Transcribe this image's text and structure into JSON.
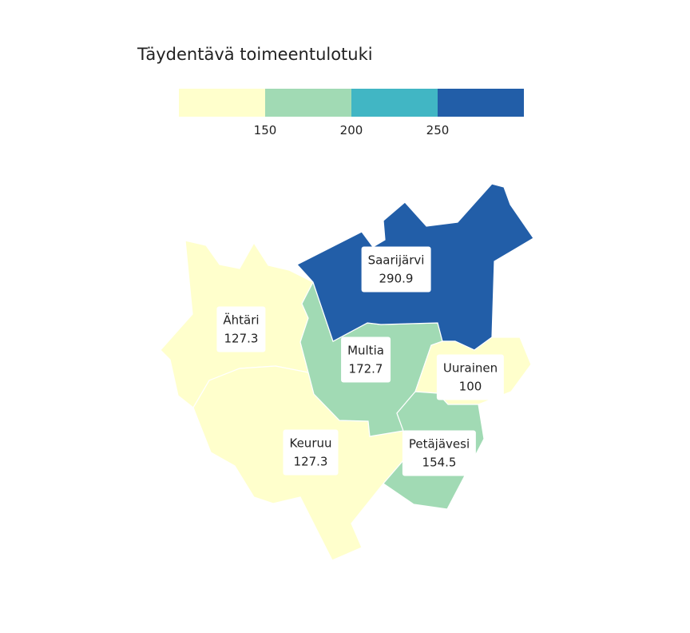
{
  "map": {
    "title": "Täydentävä toimeentulotuki",
    "legend": {
      "bins": [
        {
          "color": "#ffffcc"
        },
        {
          "color": "#a1dab4"
        },
        {
          "color": "#41b6c4"
        },
        {
          "color": "#225ea8"
        }
      ],
      "ticks": [
        "150",
        "200",
        "250"
      ]
    },
    "regions": [
      {
        "name": "Saarijärvi",
        "value": "290.9",
        "color": "#225ea8"
      },
      {
        "name": "Ähtäri",
        "value": "127.3",
        "color": "#ffffcc"
      },
      {
        "name": "Multia",
        "value": "172.7",
        "color": "#a1dab4"
      },
      {
        "name": "Uurainen",
        "value": "100",
        "color": "#ffffcc"
      },
      {
        "name": "Keuruu",
        "value": "127.3",
        "color": "#ffffcc"
      },
      {
        "name": "Petäjävesi",
        "value": "154.5",
        "color": "#a1dab4"
      }
    ]
  }
}
